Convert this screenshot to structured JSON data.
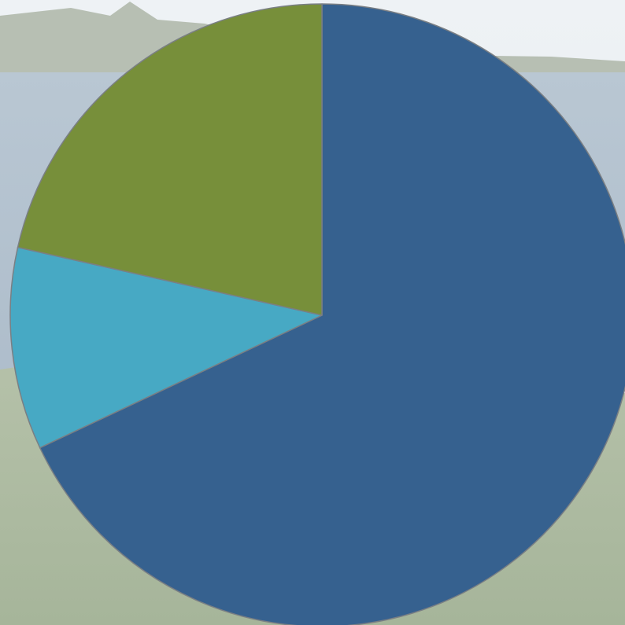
{
  "chart_data": {
    "type": "pie",
    "values": [
      68,
      10.5,
      21.5
    ],
    "colors": [
      "#36618f",
      "#47a9c4",
      "#778f3a"
    ],
    "start_angle": 0,
    "direction": "clockwise"
  }
}
